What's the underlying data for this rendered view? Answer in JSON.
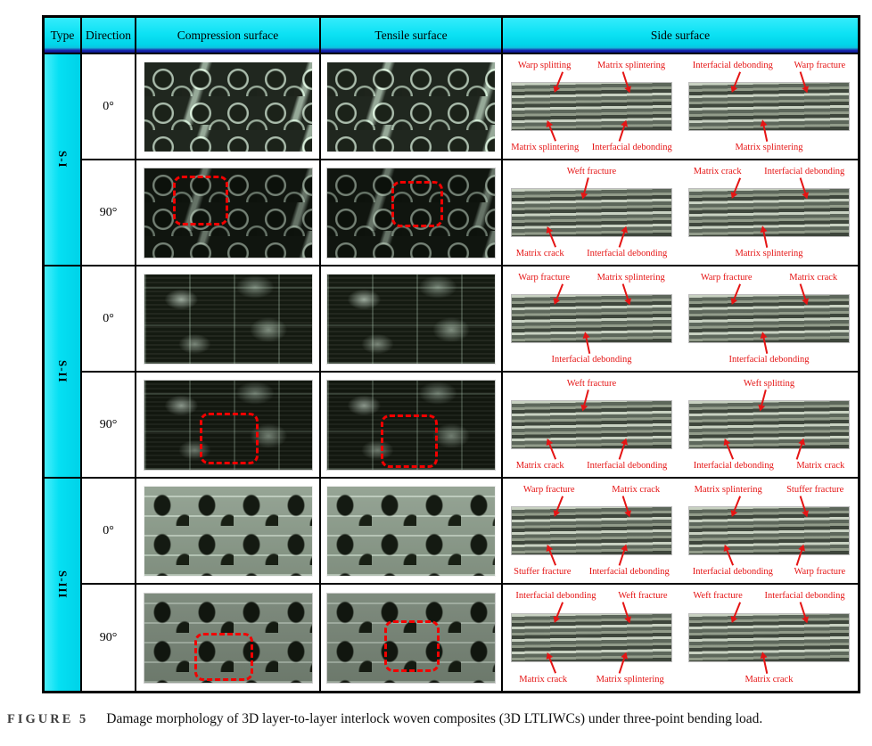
{
  "page": {
    "caption_label": "FIGURE 5",
    "caption_text": "Damage morphology of 3D layer-to-layer interlock woven composites (3D LTLIWCs) under three-point bending load."
  },
  "table": {
    "headers": {
      "type": "Type",
      "direction": "Direction",
      "compression": "Compression surface",
      "tensile": "Tensile surface",
      "side": "Side surface"
    },
    "colors": {
      "header_cyan": "#0de2f4",
      "header_edge_blue": "#0a1690",
      "annotation_red": "#e51414",
      "highlight_box_red": "#f20000",
      "border_black": "#000000"
    },
    "groups": [
      {
        "type_label": "S-I",
        "rows": [
          {
            "direction": "0°",
            "highlight_box": false,
            "side_panels": [
              {
                "top": [
                  "Warp splitting",
                  "Matrix splintering"
                ],
                "bottom": [
                  "Matrix splintering",
                  "Interfacial debonding"
                ]
              },
              {
                "top": [
                  "Interfacial debonding",
                  "Warp fracture"
                ],
                "bottom": [
                  "Matrix splintering"
                ]
              }
            ]
          },
          {
            "direction": "90°",
            "highlight_box": true,
            "side_panels": [
              {
                "top": [
                  "Weft fracture"
                ],
                "bottom": [
                  "Matrix crack",
                  "Interfacial debonding"
                ]
              },
              {
                "top": [
                  "Matrix crack",
                  "Interfacial debonding"
                ],
                "bottom": [
                  "Matrix splintering"
                ]
              }
            ]
          }
        ]
      },
      {
        "type_label": "S-II",
        "rows": [
          {
            "direction": "0°",
            "highlight_box": false,
            "side_panels": [
              {
                "top": [
                  "Warp fracture",
                  "Matrix splintering"
                ],
                "bottom": [
                  "Interfacial debonding"
                ]
              },
              {
                "top": [
                  "Warp fracture",
                  "Matrix crack"
                ],
                "bottom": [
                  "Interfacial debonding"
                ]
              }
            ]
          },
          {
            "direction": "90°",
            "highlight_box": true,
            "side_panels": [
              {
                "top": [
                  "Weft fracture"
                ],
                "bottom": [
                  "Matrix crack",
                  "Interfacial debonding"
                ]
              },
              {
                "top": [
                  "Weft splitting"
                ],
                "bottom": [
                  "Interfacial debonding",
                  "Matrix crack"
                ]
              }
            ]
          }
        ]
      },
      {
        "type_label": "S-III",
        "rows": [
          {
            "direction": "0°",
            "highlight_box": false,
            "side_panels": [
              {
                "top": [
                  "Warp fracture",
                  "Matrix crack"
                ],
                "bottom": [
                  "Stuffer fracture",
                  "Interfacial debonding"
                ]
              },
              {
                "top": [
                  "Matrix splintering",
                  "Stuffer fracture"
                ],
                "bottom": [
                  "Interfacial debonding",
                  "Warp fracture"
                ]
              }
            ]
          },
          {
            "direction": "90°",
            "highlight_box": true,
            "side_panels": [
              {
                "top": [
                  "Interfacial debonding",
                  "Weft fracture"
                ],
                "bottom": [
                  "Matrix crack",
                  "Matrix splintering"
                ]
              },
              {
                "top": [
                  "Weft fracture",
                  "Interfacial debonding"
                ],
                "bottom": [
                  "Matrix crack"
                ]
              }
            ]
          }
        ]
      }
    ]
  }
}
